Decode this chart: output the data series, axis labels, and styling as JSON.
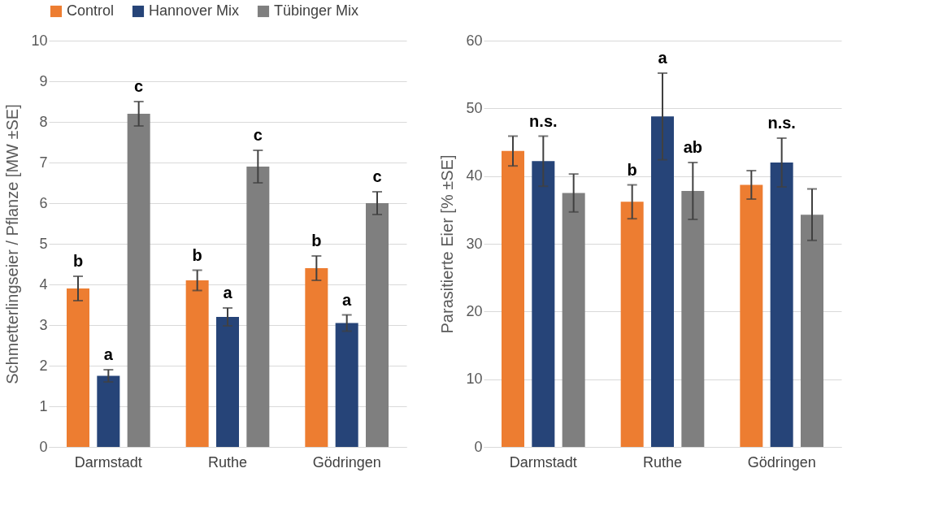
{
  "chart_data": [
    {
      "type": "bar",
      "ylabel": "Schmetterlingseier / Pflanze [MW ±SE]",
      "categories": [
        "Darmstadt",
        "Ruthe",
        "Gödringen"
      ],
      "series": [
        {
          "name": "Control",
          "color": "#ed7d31",
          "values": [
            3.9,
            4.1,
            4.4
          ],
          "errors": [
            0.3,
            0.25,
            0.3
          ],
          "value_labels": [
            "b",
            "b",
            "b"
          ]
        },
        {
          "name": "Hannover Mix",
          "color": "#264478",
          "values": [
            1.75,
            3.2,
            3.05
          ],
          "errors": [
            0.15,
            0.22,
            0.2
          ],
          "value_labels": [
            "a",
            "a",
            "a"
          ]
        },
        {
          "name": "Tübinger Mix",
          "color": "#7f7f7f",
          "values": [
            8.2,
            6.9,
            6.0
          ],
          "errors": [
            0.3,
            0.4,
            0.28
          ],
          "value_labels": [
            "c",
            "c",
            "c"
          ]
        }
      ],
      "ylim": [
        0,
        10
      ],
      "yticks": [
        0,
        1,
        2,
        3,
        4,
        5,
        6,
        7,
        8,
        9,
        10
      ],
      "grid": "y",
      "legend": "top"
    },
    {
      "type": "bar",
      "ylabel": "Parasitierte Eier [% ±SE]",
      "categories": [
        "Darmstadt",
        "Ruthe",
        "Gödringen"
      ],
      "series": [
        {
          "color": "#ed7d31",
          "values": [
            43.7,
            36.2,
            38.7
          ],
          "errors": [
            2.2,
            2.5,
            2.1
          ],
          "value_labels": [
            null,
            "b",
            null
          ]
        },
        {
          "color": "#264478",
          "values": [
            42.2,
            48.8,
            42.0
          ],
          "errors": [
            3.7,
            6.4,
            3.6
          ],
          "value_labels": [
            "n.s.",
            "a",
            "n.s."
          ]
        },
        {
          "color": "#7f7f7f",
          "values": [
            37.5,
            37.8,
            34.3
          ],
          "errors": [
            2.8,
            4.2,
            3.8
          ],
          "value_labels": [
            null,
            "ab",
            null
          ]
        }
      ],
      "ylim": [
        0,
        60
      ],
      "yticks": [
        0,
        10,
        20,
        30,
        40,
        50,
        60
      ],
      "grid": "y",
      "legend": false
    }
  ]
}
